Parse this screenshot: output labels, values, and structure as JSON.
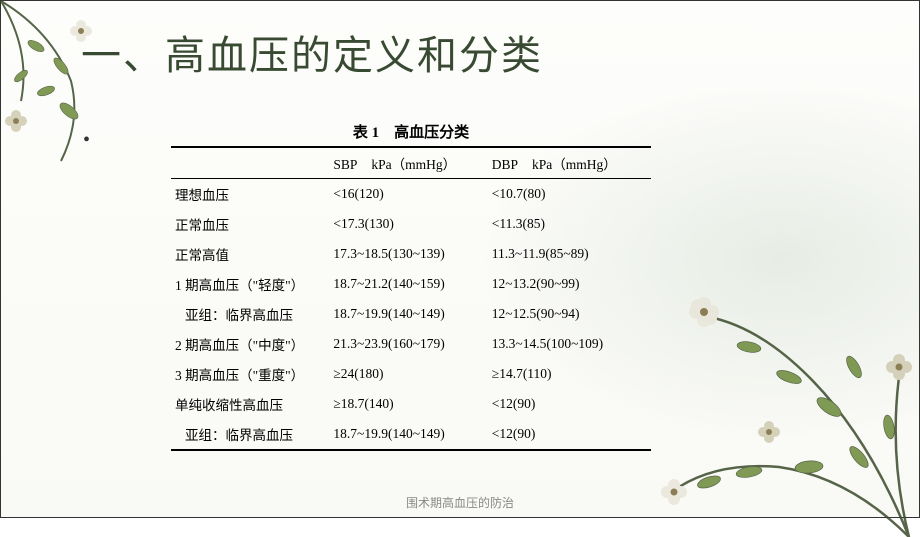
{
  "title": "一、高血压的定义和分类",
  "table": {
    "caption": "表 1　高血压分类",
    "header": {
      "label": "",
      "sbp_main": "SBP",
      "sbp_unit": "kPa（mmHg）",
      "dbp_main": "DBP",
      "dbp_unit": "kPa（mmHg）"
    },
    "rows": [
      {
        "label": "理想血压",
        "sbp": "<16(120)",
        "dbp": "<10.7(80)",
        "indent": false
      },
      {
        "label": "正常血压",
        "sbp": "<17.3(130)",
        "dbp": "<11.3(85)",
        "indent": false
      },
      {
        "label": "正常高值",
        "sbp": "17.3~18.5(130~139)",
        "dbp": "11.3~11.9(85~89)",
        "indent": false
      },
      {
        "label": "1 期高血压（\"轻度\"）",
        "sbp": "18.7~21.2(140~159)",
        "dbp": "12~13.2(90~99)",
        "indent": false
      },
      {
        "label": "亚组：临界高血压",
        "sbp": "18.7~19.9(140~149)",
        "dbp": "12~12.5(90~94)",
        "indent": true
      },
      {
        "label": "2 期高血压（\"中度\"）",
        "sbp": "21.3~23.9(160~179)",
        "dbp": "13.3~14.5(100~109)",
        "indent": false
      },
      {
        "label": "3 期高血压（\"重度\"）",
        "sbp": "≥24(180)",
        "dbp": "≥14.7(110)",
        "indent": false
      },
      {
        "label": "单纯收缩性高血压",
        "sbp": "≥18.7(140)",
        "dbp": "<12(90)",
        "indent": false
      },
      {
        "label": "亚组：临界高血压",
        "sbp": "18.7~19.9(140~149)",
        "dbp": "<12(90)",
        "indent": true
      }
    ]
  },
  "footer": "围术期高血压的防治",
  "style": {
    "title_color": "#394a32",
    "title_fontsize": 40,
    "table_fontsize": 13.5,
    "border_color": "#000000",
    "floral_stem": "#3a4a2a",
    "floral_leaf": "#6b8a3a",
    "floral_flower": "#e9e6da",
    "floral_flower_dark": "#cfcab0",
    "floral_center": "#7a6a3a"
  }
}
